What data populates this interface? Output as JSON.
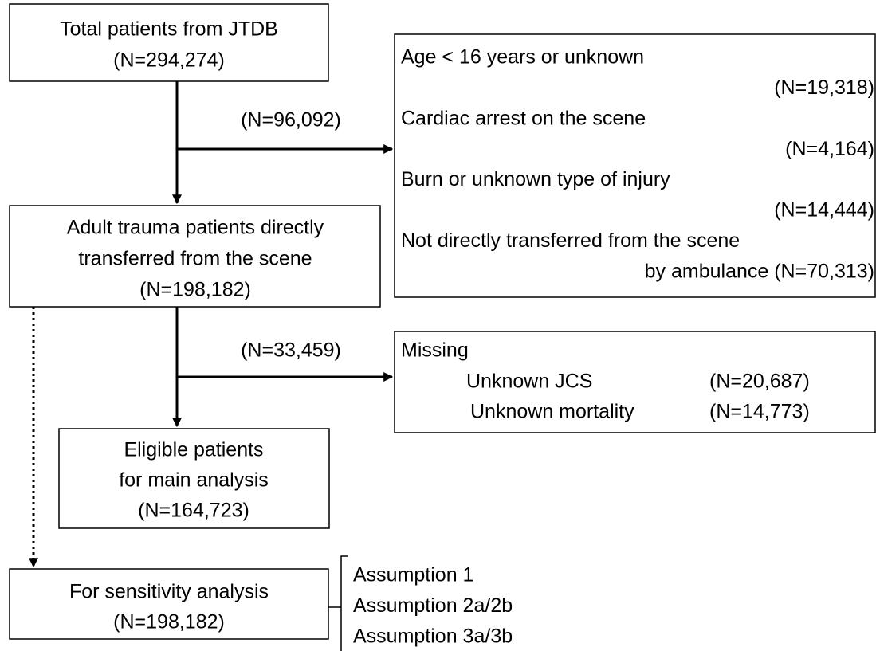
{
  "nodes": [
    {
      "lines": [
        "Total patients from JTDB",
        "(N=294,274)"
      ]
    },
    {
      "lines": [
        "Adult trauma patients directly",
        "transferred from the scene",
        "(N=198,182)"
      ]
    },
    {
      "lines": [
        "Eligible patients",
        "for main analysis",
        "(N=164,723)"
      ]
    },
    {
      "lines": [
        "For sensitivity analysis",
        "(N=198,182)"
      ]
    }
  ],
  "exclusions": [
    {
      "count": "(N=96,092)",
      "lines": [
        "Age < 16 years or unknown",
        "(N=19,318)",
        "Cardiac arrest on the scene",
        "(N=4,164)",
        "Burn or unknown type of injury",
        "(N=14,444)",
        "Not directly transferred from the scene",
        "by ambulance (N=70,313)"
      ]
    },
    {
      "count": "(N=33,459)",
      "title": "Missing",
      "rows": [
        [
          "Unknown JCS",
          "(N=20,687)"
        ],
        [
          "Unknown mortality",
          "(N=14,773)"
        ]
      ]
    }
  ],
  "assumptions": [
    "Assumption 1",
    "Assumption 2a/2b",
    "Assumption 3a/3b"
  ]
}
